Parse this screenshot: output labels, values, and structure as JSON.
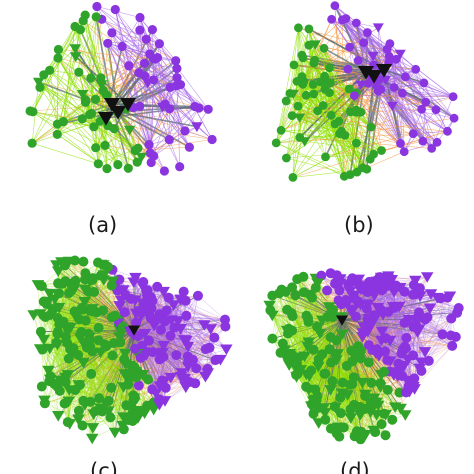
{
  "figure": {
    "panels": [
      {
        "id": "a",
        "label": "(a)",
        "density": "sparse"
      },
      {
        "id": "b",
        "label": "(b)",
        "density": "sparse"
      },
      {
        "id": "c",
        "label": "(c)",
        "density": "dense"
      },
      {
        "id": "d",
        "label": "(d)",
        "density": "dense"
      }
    ],
    "colors": {
      "green_community": "#2fa32a",
      "green_edges": "#8be000",
      "purple_community": "#8a35e0",
      "purple_edges": "#a86ae8",
      "orange_edges": "#f5953a",
      "grey_edges": "#5e6f73",
      "highlight_nodes": "#111111"
    },
    "node_shapes": [
      "circle-icon",
      "triangle-down-icon"
    ]
  }
}
